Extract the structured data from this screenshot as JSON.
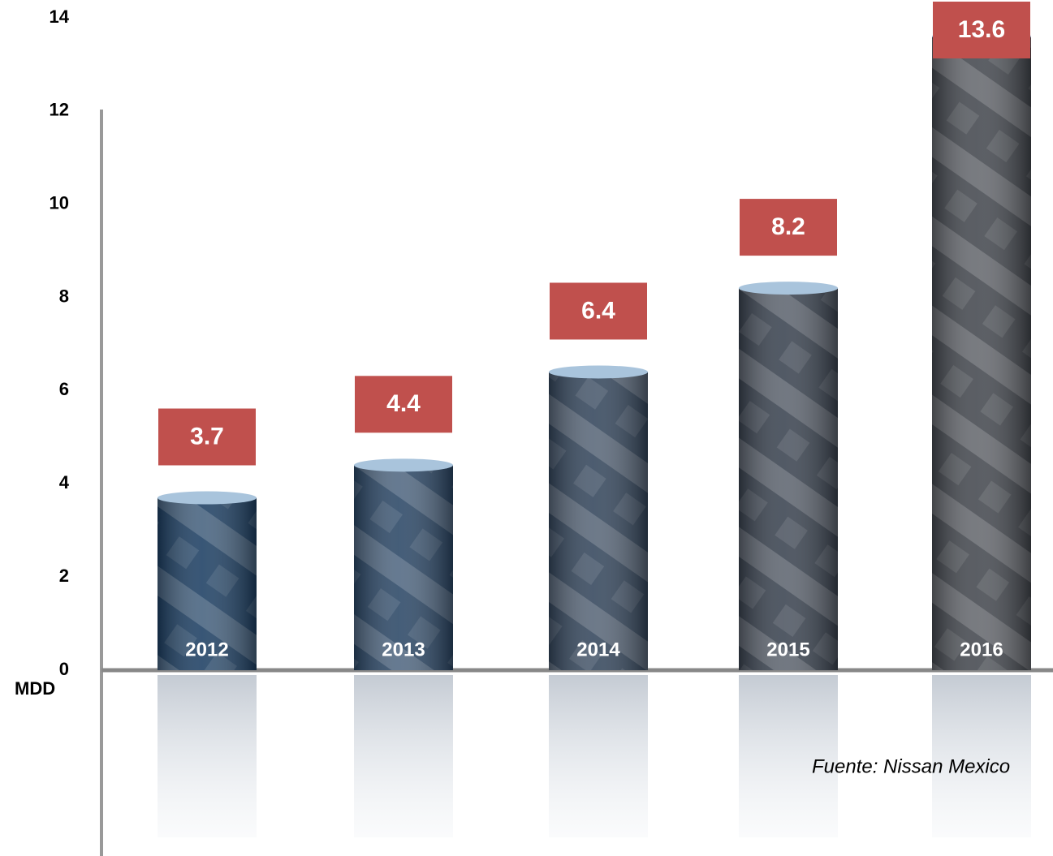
{
  "chart_data": {
    "type": "bar",
    "categories": [
      "2012",
      "2013",
      "2014",
      "2015",
      "2016"
    ],
    "values": [
      3.7,
      4.4,
      6.4,
      8.2,
      13.6
    ],
    "colors": [
      "#1d3f63",
      "#2b4766",
      "#34465c",
      "#3a4350",
      "#44484f"
    ],
    "label_color": "#c0504d",
    "ylim": [
      0,
      14
    ],
    "yticks": [
      0,
      2,
      4,
      6,
      8,
      10,
      12,
      14
    ],
    "y_unit": "MDD",
    "source": "Fuente: Nissan Mexico"
  }
}
